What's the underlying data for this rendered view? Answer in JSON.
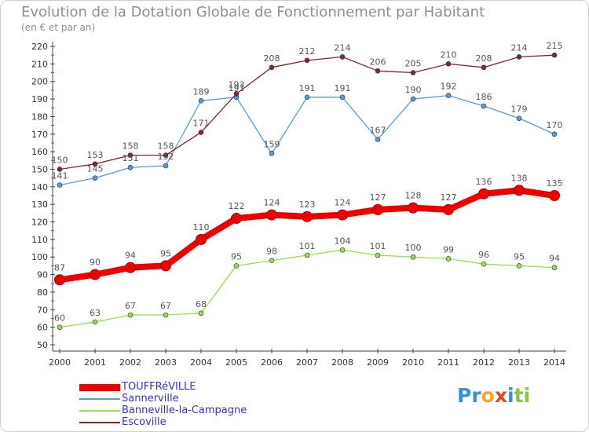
{
  "title": "Evolution de la Dotation Globale de Fonctionnement par Habitant",
  "subtitle": "(en € et par an)",
  "brand": {
    "letters": [
      {
        "ch": "P",
        "color": "#3a8fd8"
      },
      {
        "ch": "r",
        "color": "#3a8fd8"
      },
      {
        "ch": "o",
        "color": "#f5a623"
      },
      {
        "ch": "x",
        "color": "#e8432a"
      },
      {
        "ch": "i",
        "color": "#3a8fd8"
      },
      {
        "ch": "t",
        "color": "#8cc63f"
      },
      {
        "ch": "i",
        "color": "#8cc63f"
      }
    ]
  },
  "chart_data": {
    "type": "line",
    "title": "Evolution de la Dotation Globale de Fonctionnement par Habitant",
    "subtitle": "(en € et par an)",
    "xlabel": "",
    "ylabel": "",
    "ylim": [
      50,
      220
    ],
    "yticks": [
      50,
      60,
      70,
      80,
      90,
      100,
      110,
      120,
      130,
      140,
      150,
      160,
      170,
      180,
      190,
      200,
      210,
      220
    ],
    "grid": false,
    "legend_position": "bottom-left",
    "x": [
      2000,
      2001,
      2002,
      2003,
      2004,
      2005,
      2006,
      2007,
      2008,
      2009,
      2010,
      2011,
      2012,
      2013,
      2014
    ],
    "series": [
      {
        "name": "TOUFFRéVILLE",
        "color": "#ee0000",
        "emphasis": true,
        "values": [
          87,
          90,
          94,
          95,
          110,
          122,
          124,
          123,
          124,
          127,
          128,
          127,
          136,
          138,
          135
        ]
      },
      {
        "name": "Sannerville",
        "color": "#5b9bd5",
        "emphasis": false,
        "values": [
          141,
          145,
          151,
          152,
          189,
          191,
          159,
          191,
          191,
          167,
          190,
          192,
          186,
          179,
          170
        ]
      },
      {
        "name": "Banneville-la-Campagne",
        "color": "#99dd55",
        "emphasis": false,
        "values": [
          60,
          63,
          67,
          67,
          68,
          95,
          98,
          101,
          104,
          101,
          100,
          99,
          96,
          95,
          94
        ]
      },
      {
        "name": "Escoville",
        "color": "#7f2a2a",
        "emphasis": false,
        "values": [
          150,
          153,
          158,
          158,
          171,
          193,
          208,
          212,
          214,
          206,
          205,
          210,
          208,
          214,
          215
        ]
      }
    ]
  }
}
